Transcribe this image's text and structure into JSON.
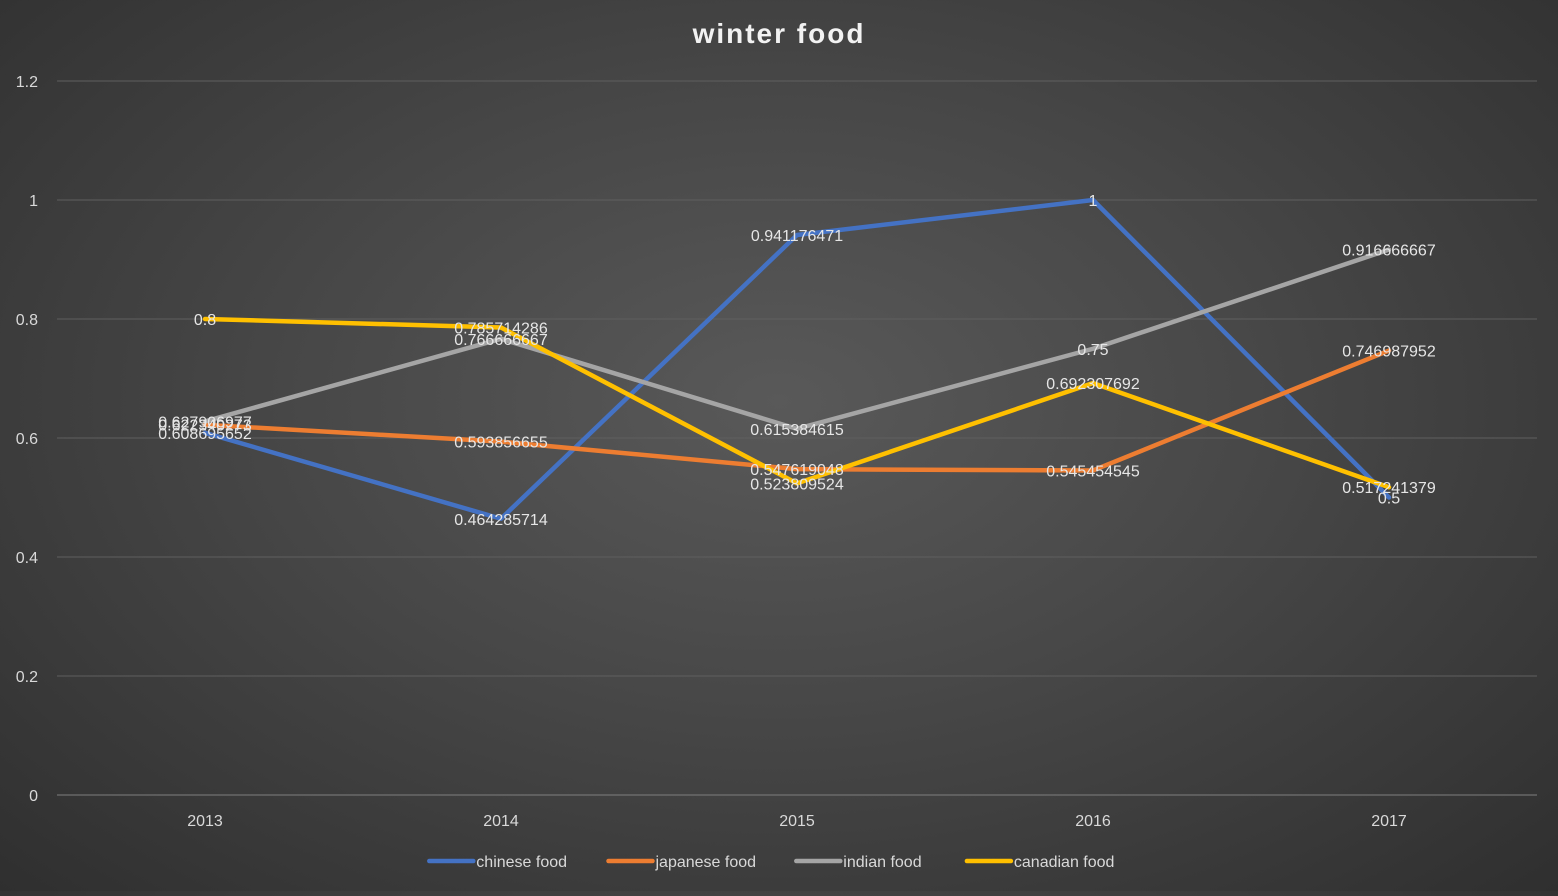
{
  "chart_data": {
    "type": "line",
    "title": "winter food",
    "categories": [
      "2013",
      "2014",
      "2015",
      "2016",
      "2017"
    ],
    "ylim": [
      0,
      1.2
    ],
    "yticks": [
      "0",
      "0.2",
      "0.4",
      "0.6",
      "0.8",
      "1",
      "1.2"
    ],
    "grid": true,
    "legend": "bottom",
    "series": [
      {
        "name": "chinese food",
        "color": "#4472c4",
        "values": [
          0.608695652,
          0.464285714,
          0.941176471,
          1,
          0.5
        ],
        "labels": [
          "0.608695652",
          "0.464285714",
          "0.941176471",
          "1",
          "0.5"
        ]
      },
      {
        "name": "japanese food",
        "color": "#ed7d31",
        "values": [
          0.622340273,
          0.593856655,
          0.547619048,
          0.545454545,
          0.746987952
        ],
        "labels": [
          "0.622340273",
          "0.593856655",
          "0.547619048",
          "0.545454545",
          "0.746987952"
        ]
      },
      {
        "name": "indian food",
        "color": "#a5a5a5",
        "values": [
          0.627906977,
          0.766666667,
          0.615384615,
          0.75,
          0.916666667
        ],
        "labels": [
          "0.627906977",
          "0.766666667",
          "0.615384615",
          "0.75",
          "0.916666667"
        ]
      },
      {
        "name": "canadian food",
        "color": "#ffc000",
        "values": [
          0.8,
          0.785714286,
          0.523809524,
          0.692307692,
          0.517241379
        ],
        "labels": [
          "0.8",
          "0.785714286",
          "0.523809524",
          "0.692307692",
          "0.517241379"
        ]
      }
    ]
  }
}
